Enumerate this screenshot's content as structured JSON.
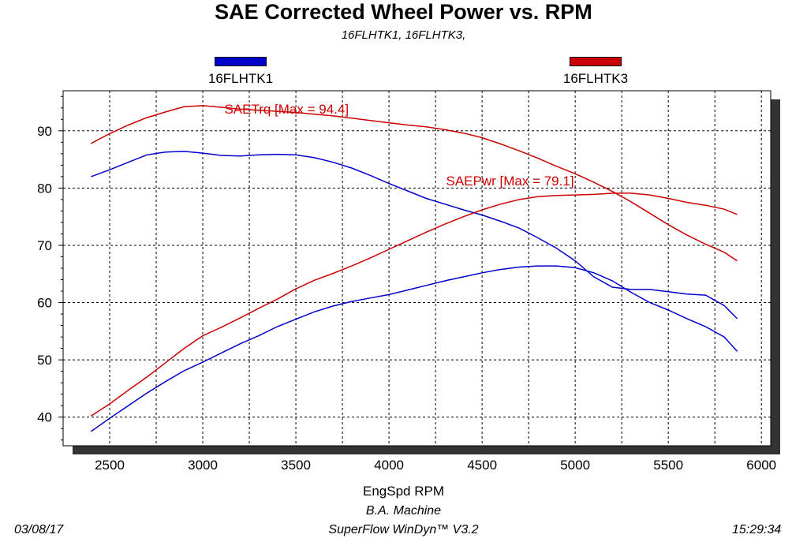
{
  "chart_data": {
    "type": "line",
    "title": "SAE Corrected Wheel Power vs. RPM",
    "subtitle": "16FLHTK1, 16FLHTK3,",
    "xlabel": "EngSpd RPM",
    "ylabel": "",
    "xlim": [
      2250,
      6050
    ],
    "ylim": [
      35,
      97
    ],
    "xticks": [
      2500,
      3000,
      3500,
      4000,
      4500,
      5000,
      5500,
      6000
    ],
    "yticks": [
      40,
      50,
      60,
      70,
      80,
      90
    ],
    "grid": true,
    "legend_placement": "top",
    "legend": [
      {
        "name": "16FLHTK1",
        "color": "#0000cc"
      },
      {
        "name": "16FLHTK3",
        "color": "#cc0000"
      }
    ],
    "annotations": [
      {
        "text": "SAETrq [Max = 94.4]",
        "x": 3450,
        "y": 93.0,
        "color": "#cc0000"
      },
      {
        "text": "SAEPwr [Max = 79.1]",
        "x": 4650,
        "y": 80.5,
        "color": "#cc0000"
      }
    ],
    "series": [
      {
        "name": "16FLHTK1",
        "color": "#0000cc",
        "label_key": "SAETrq",
        "x": [
          2400,
          2500,
          2600,
          2700,
          2800,
          2900,
          3000,
          3100,
          3200,
          3300,
          3400,
          3500,
          3600,
          3700,
          3800,
          3900,
          4000,
          4100,
          4200,
          4300,
          4400,
          4500,
          4600,
          4700,
          4800,
          4900,
          5000,
          5100,
          5200,
          5300,
          5400,
          5500,
          5600,
          5700,
          5800,
          5870
        ],
        "y": [
          82,
          83.2,
          84.5,
          85.8,
          86.3,
          86.4,
          86.1,
          85.7,
          85.6,
          85.8,
          85.9,
          85.8,
          85.3,
          84.5,
          83.5,
          82.2,
          80.8,
          79.5,
          78.2,
          77.2,
          76.2,
          75.3,
          74.2,
          73,
          71.3,
          69.5,
          67.3,
          64.5,
          62.7,
          62.3,
          62.3,
          61.9,
          61.5,
          61.3,
          59.5,
          57.2
        ]
      },
      {
        "name": "16FLHTK1",
        "color": "#0000cc",
        "label_key": "SAEPwr",
        "x": [
          2400,
          2500,
          2600,
          2700,
          2800,
          2900,
          3000,
          3100,
          3200,
          3300,
          3400,
          3500,
          3600,
          3700,
          3800,
          3900,
          4000,
          4100,
          4200,
          4300,
          4400,
          4500,
          4600,
          4700,
          4800,
          4900,
          5000,
          5100,
          5200,
          5300,
          5400,
          5500,
          5600,
          5700,
          5800,
          5870
        ],
        "y": [
          37.5,
          39.8,
          42,
          44.2,
          46.2,
          48.1,
          49.6,
          51.2,
          52.8,
          54.2,
          55.8,
          57.1,
          58.4,
          59.4,
          60.2,
          60.8,
          61.4,
          62.2,
          63,
          63.8,
          64.5,
          65.2,
          65.8,
          66.2,
          66.4,
          66.4,
          66.1,
          65.2,
          63.8,
          61.8,
          60,
          58.7,
          57.2,
          55.8,
          54,
          51.5
        ]
      },
      {
        "name": "16FLHTK3",
        "color": "#cc0000",
        "label_key": "SAETrq",
        "x": [
          2400,
          2500,
          2600,
          2700,
          2800,
          2900,
          3000,
          3100,
          3200,
          3300,
          3400,
          3500,
          3600,
          3700,
          3800,
          3900,
          4000,
          4100,
          4200,
          4300,
          4400,
          4500,
          4600,
          4700,
          4800,
          4900,
          5000,
          5100,
          5200,
          5300,
          5400,
          5500,
          5600,
          5700,
          5800,
          5870
        ],
        "y": [
          87.8,
          89.5,
          91,
          92.3,
          93.3,
          94.2,
          94.4,
          94.1,
          93.8,
          93.6,
          93.4,
          93.2,
          92.9,
          92.6,
          92.2,
          91.8,
          91.4,
          91,
          90.7,
          90.2,
          89.6,
          88.8,
          87.7,
          86.5,
          85.2,
          83.8,
          82.5,
          81,
          79.4,
          77.6,
          75.6,
          73.6,
          71.8,
          70.2,
          68.8,
          67.3
        ]
      },
      {
        "name": "16FLHTK3",
        "color": "#cc0000",
        "label_key": "SAEPwr",
        "x": [
          2400,
          2500,
          2600,
          2700,
          2800,
          2900,
          3000,
          3100,
          3200,
          3300,
          3400,
          3500,
          3600,
          3700,
          3800,
          3900,
          4000,
          4100,
          4200,
          4300,
          4400,
          4500,
          4600,
          4700,
          4800,
          4900,
          5000,
          5100,
          5200,
          5300,
          5400,
          5500,
          5600,
          5700,
          5800,
          5870
        ],
        "y": [
          40.2,
          42.3,
          44.7,
          47,
          49.5,
          52,
          54.2,
          55.7,
          57.3,
          59,
          60.6,
          62.4,
          63.9,
          65.1,
          66.4,
          67.8,
          69.3,
          70.8,
          72.3,
          73.7,
          75,
          76.2,
          77.2,
          78,
          78.5,
          78.7,
          78.8,
          78.9,
          79.1,
          79.1,
          78.8,
          78.2,
          77.5,
          77,
          76.3,
          75.4
        ]
      }
    ]
  },
  "footer": {
    "shop": "B.A. Machine",
    "software": "SuperFlow WinDyn™ V3.2",
    "date": "03/08/17",
    "time": "15:29:34"
  }
}
